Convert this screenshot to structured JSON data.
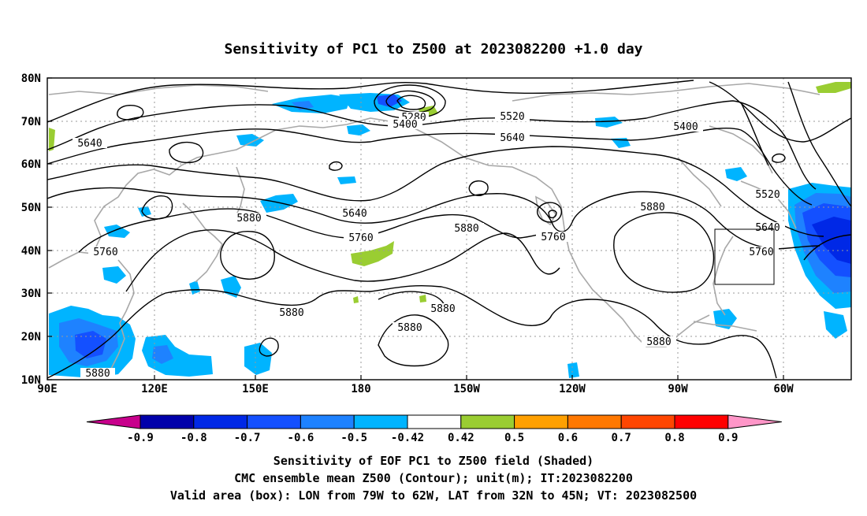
{
  "title": "Sensitivity of PC1 to Z500 at 2023082200 +1.0 day",
  "lat_labels": [
    "80N",
    "70N",
    "60N",
    "50N",
    "40N",
    "30N",
    "20N",
    "10N"
  ],
  "lon_labels": [
    "90E",
    "120E",
    "150E",
    "180",
    "150W",
    "120W",
    "90W",
    "60W"
  ],
  "contour_labels": [
    "5280",
    "5400",
    "5520",
    "5640",
    "5400",
    "5640",
    "5520",
    "5880",
    "5640",
    "5880",
    "5760",
    "5640",
    "5760",
    "5880",
    "5760",
    "5880",
    "5760",
    "5880",
    "5880",
    "5880",
    "5880"
  ],
  "colorbar": {
    "labels": [
      "-0.9",
      "-0.8",
      "-0.7",
      "-0.6",
      "-0.5",
      "-0.42",
      "0.42",
      "0.5",
      "0.6",
      "0.7",
      "0.8",
      "0.9"
    ],
    "colors": [
      "#c8008c",
      "#0000aa",
      "#0028e6",
      "#1450ff",
      "#1e82ff",
      "#00b4ff",
      "#ffffff",
      "#9acd32",
      "#ffa000",
      "#ff7800",
      "#ff4600",
      "#ff0000",
      "#ff96c8"
    ]
  },
  "caption": {
    "line1": "Sensitivity of EOF PC1 to Z500 field (Shaded)",
    "line2": "CMC ensemble mean Z500 (Contour); unit(m); IT:2023082200",
    "line3": "Valid area (box): LON from 79W to 62W, LAT from 32N to 45N; VT: 2023082500"
  }
}
